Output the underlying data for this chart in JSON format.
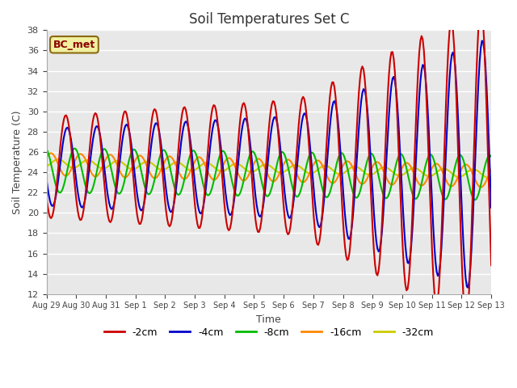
{
  "title": "Soil Temperatures Set C",
  "xlabel": "Time",
  "ylabel": "Soil Temperature (C)",
  "ylim": [
    12,
    38
  ],
  "fig_facecolor": "#ffffff",
  "plot_facecolor": "#e8e8e8",
  "legend_label": "BC_met",
  "series_colors": {
    "-2cm": "#cc0000",
    "-4cm": "#0000cc",
    "-8cm": "#00bb00",
    "-16cm": "#ff8800",
    "-32cm": "#cccc00"
  },
  "x_tick_labels": [
    "Aug 29",
    "Aug 30",
    "Aug 31",
    "Sep 1",
    "Sep 2",
    "Sep 3",
    "Sep 4",
    "Sep 5",
    "Sep 6",
    "Sep 7",
    "Sep 8",
    "Sep 9",
    "Sep 10",
    "Sep 11",
    "Sep 12",
    "Sep 13"
  ],
  "legend_items": [
    "-2cm",
    "-4cm",
    "-8cm",
    "-16cm",
    "-32cm"
  ],
  "legend_colors": [
    "#cc0000",
    "#0000cc",
    "#00bb00",
    "#ff8800",
    "#cccc00"
  ]
}
